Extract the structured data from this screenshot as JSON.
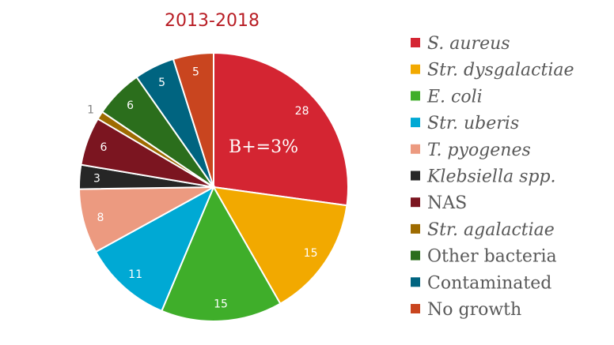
{
  "chart_data": {
    "type": "pie",
    "title": "2013-2018",
    "annotation": "B+=3%",
    "legend_position": "right",
    "slices": [
      {
        "name": "S. aureus",
        "value": 28,
        "color": "#d42532",
        "italic": true
      },
      {
        "name": "Str. dysgalactiae",
        "value": 15,
        "color": "#f2a900",
        "italic": true
      },
      {
        "name": "E. coli",
        "value": 15,
        "color": "#3fae2a",
        "italic": true
      },
      {
        "name": "Str. uberis",
        "value": 11,
        "color": "#00a9d4",
        "italic": true
      },
      {
        "name": "T. pyogenes",
        "value": 8,
        "color": "#ec9a80",
        "italic": true
      },
      {
        "name": "Klebsiella spp.",
        "value": 3,
        "color": "#262626",
        "italic": true
      },
      {
        "name": "NAS",
        "value": 6,
        "color": "#7b1520",
        "italic": false
      },
      {
        "name": "Str. agalactiae",
        "value": 1,
        "color": "#9e6b00",
        "italic": true
      },
      {
        "name": "Other bacteria",
        "value": 6,
        "color": "#2b6e1c",
        "italic": false
      },
      {
        "name": "Contaminated",
        "value": 5,
        "color": "#006480",
        "italic": false
      },
      {
        "name": "No growth",
        "value": 5,
        "color": "#c9451f",
        "italic": false
      }
    ]
  }
}
